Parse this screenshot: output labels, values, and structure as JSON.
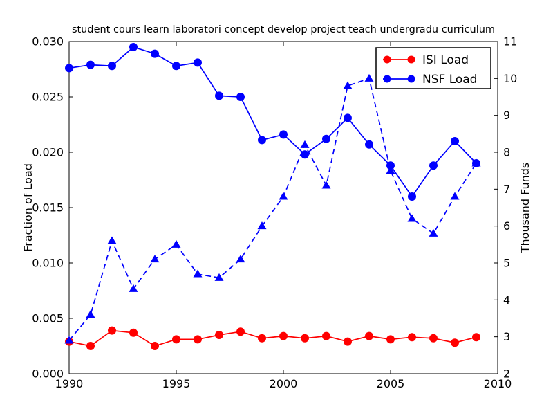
{
  "figure": {
    "background": "#ffffff",
    "frame_color": "#000000"
  },
  "chart_data": {
    "type": "line",
    "title": "student cours learn laboratori concept develop project teach undergradu curriculum",
    "xlabel": "",
    "ylabel_left": "Fraction of Load",
    "ylabel_right": "Thousand Funds",
    "xlim": [
      1990,
      2010
    ],
    "ylim_left": [
      0.0,
      0.03
    ],
    "ylim_right": [
      2,
      11
    ],
    "grid": false,
    "legend_position": "upper right",
    "xticks": [
      {
        "v": 1990,
        "label": "1990"
      },
      {
        "v": 1995,
        "label": "1995"
      },
      {
        "v": 2000,
        "label": "2000"
      },
      {
        "v": 2005,
        "label": "2005"
      },
      {
        "v": 2010,
        "label": "2010"
      }
    ],
    "yticks_left": [
      {
        "v": 0.0,
        "label": "0.000"
      },
      {
        "v": 0.005,
        "label": "0.005"
      },
      {
        "v": 0.01,
        "label": "0.010"
      },
      {
        "v": 0.015,
        "label": "0.015"
      },
      {
        "v": 0.02,
        "label": "0.020"
      },
      {
        "v": 0.025,
        "label": "0.025"
      },
      {
        "v": 0.03,
        "label": "0.030"
      }
    ],
    "yticks_right": [
      {
        "v": 2,
        "label": "2"
      },
      {
        "v": 3,
        "label": "3"
      },
      {
        "v": 4,
        "label": "4"
      },
      {
        "v": 5,
        "label": "5"
      },
      {
        "v": 6,
        "label": "6"
      },
      {
        "v": 7,
        "label": "7"
      },
      {
        "v": 8,
        "label": "8"
      },
      {
        "v": 9,
        "label": "9"
      },
      {
        "v": 10,
        "label": "10"
      },
      {
        "v": 11,
        "label": "11"
      }
    ],
    "x": [
      1990,
      1991,
      1992,
      1993,
      1994,
      1995,
      1996,
      1997,
      1998,
      1999,
      2000,
      2001,
      2002,
      2003,
      2004,
      2005,
      2006,
      2007,
      2008,
      2009
    ],
    "series": [
      {
        "name": "ISI Load",
        "axis": "left",
        "color": "#ff0000",
        "marker": "circle",
        "linestyle": "solid",
        "in_legend": true,
        "values": [
          0.0029,
          0.0025,
          0.0039,
          0.0037,
          0.0025,
          0.0031,
          0.0031,
          0.0035,
          0.0038,
          0.0032,
          0.0034,
          0.0032,
          0.0034,
          0.0029,
          0.0034,
          0.0031,
          0.0033,
          0.0032,
          0.0028,
          0.0033
        ]
      },
      {
        "name": "NSF Load",
        "axis": "left",
        "color": "#0000ff",
        "marker": "circle",
        "linestyle": "solid",
        "in_legend": true,
        "values": [
          0.0276,
          0.0279,
          0.0278,
          0.0295,
          0.0289,
          0.0278,
          0.0281,
          0.0251,
          0.025,
          0.0211,
          0.0216,
          0.0198,
          0.0212,
          0.0231,
          0.0207,
          0.0188,
          0.016,
          0.0188,
          0.021,
          0.019
        ]
      },
      {
        "name": "Thousand Funds",
        "axis": "right",
        "color": "#0000ff",
        "marker": "triangle",
        "linestyle": "dashed",
        "in_legend": false,
        "values": [
          2.9,
          3.6,
          5.6,
          4.3,
          5.1,
          5.5,
          4.7,
          4.6,
          5.1,
          6.0,
          6.8,
          8.2,
          7.1,
          9.8,
          10.0,
          7.5,
          6.2,
          5.8,
          6.8,
          7.7
        ]
      }
    ],
    "legend": {
      "entries": [
        {
          "label": "ISI Load",
          "color": "#ff0000"
        },
        {
          "label": "NSF Load",
          "color": "#0000ff"
        }
      ]
    }
  }
}
